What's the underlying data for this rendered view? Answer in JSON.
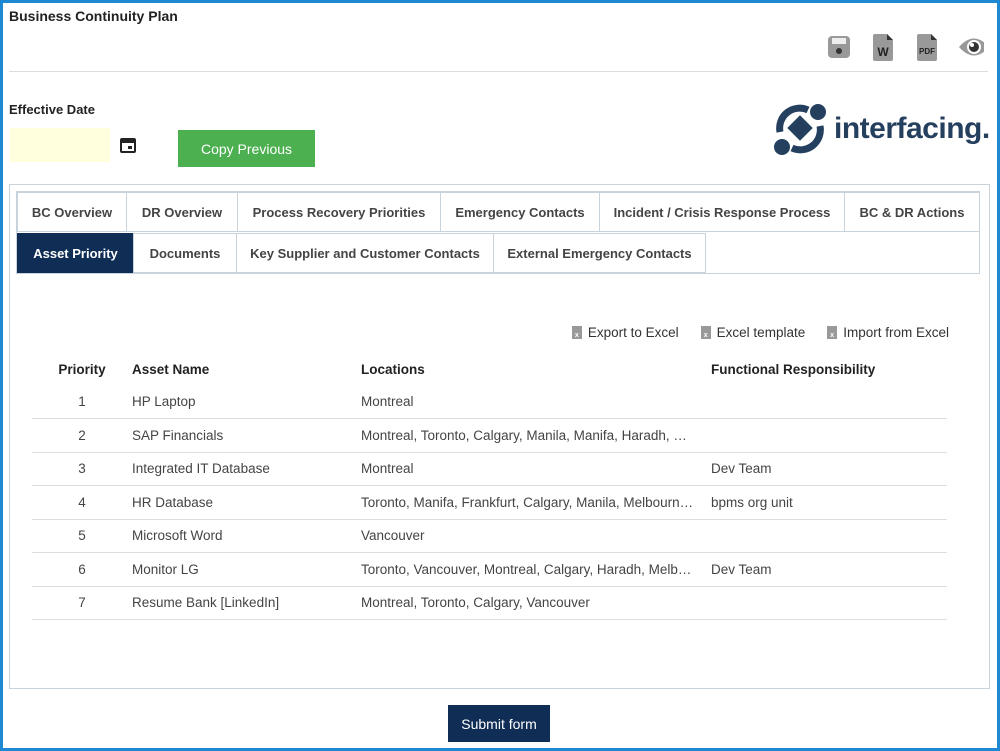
{
  "title": "Business Continuity Plan",
  "toolbar": {
    "icons": [
      "save-icon",
      "word-icon",
      "pdf-icon",
      "preview-icon"
    ],
    "word_label": "W",
    "pdf_label": "PDF"
  },
  "effective_date": {
    "label": "Effective Date",
    "value": ""
  },
  "copy_previous": "Copy Previous",
  "logo": "interfacing.",
  "tabs": [
    {
      "label": "BC Overview"
    },
    {
      "label": "DR Overview"
    },
    {
      "label": "Process Recovery Priorities"
    },
    {
      "label": "Emergency Contacts"
    },
    {
      "label": "Incident / Crisis Response Process"
    },
    {
      "label": "BC & DR Actions"
    },
    {
      "label": "Asset Priority",
      "active": true
    },
    {
      "label": "Documents"
    },
    {
      "label": "Key Supplier and Customer Contacts"
    },
    {
      "label": "External Emergency Contacts"
    }
  ],
  "actions": {
    "export": "Export to Excel",
    "template": "Excel template",
    "import": "Import from Excel"
  },
  "table": {
    "headers": [
      "Priority",
      "Asset Name",
      "Locations",
      "Functional Responsibility"
    ],
    "rows": [
      [
        "1",
        "HP Laptop",
        "Montreal",
        ""
      ],
      [
        "2",
        "SAP Financials",
        "Montreal, Toronto, Calgary, Manila, Manifa, Haradh, Frankfurt",
        ""
      ],
      [
        "3",
        "Integrated IT Database",
        "Montreal",
        "Dev Team"
      ],
      [
        "4",
        "HR Database",
        "Toronto, Manifa, Frankfurt, Calgary, Manila, Melbourne, Vancouver",
        "bpms org unit"
      ],
      [
        "5",
        "Microsoft Word",
        "Vancouver",
        ""
      ],
      [
        "6",
        "Monitor LG",
        "Toronto, Vancouver, Montreal, Calgary, Haradh, Melbourne",
        "Dev Team"
      ],
      [
        "7",
        "Resume Bank [LinkedIn]",
        "Montreal, Toronto, Calgary, Vancouver",
        ""
      ]
    ]
  },
  "submit": "Submit form",
  "colors": {
    "primary": "#0f2d55",
    "green": "#4caf50",
    "border": "#1e88d2"
  }
}
